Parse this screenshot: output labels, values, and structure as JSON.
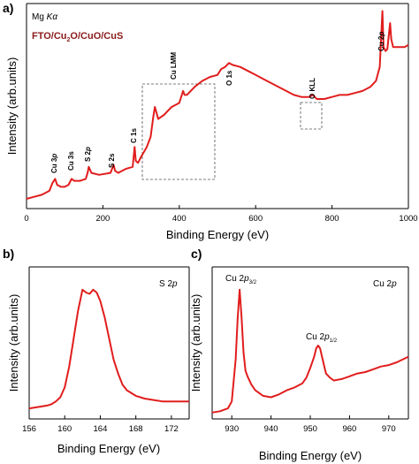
{
  "chart_data": [
    {
      "panel": "a)",
      "type": "line",
      "annotations_top": [
        "Mg Kα",
        "FTO/Cu₂O/CuO/CuS"
      ],
      "xlabel": "Binding Energy (eV)",
      "ylabel": "Intensity (arb.units)",
      "xlim": [
        0,
        1000
      ],
      "xticks": [
        0,
        200,
        400,
        600,
        800,
        1000
      ],
      "peak_labels": [
        "Cu 3p",
        "Cu 3s",
        "S 2p",
        "S 2s",
        "C 1s",
        "Cu LMM",
        "O 1s",
        "O KLL",
        "Cu 2p"
      ],
      "color": "#e11d1d",
      "series": [
        {
          "x": [
            0,
            20,
            40,
            60,
            68,
            75,
            80,
            90,
            100,
            110,
            118,
            125,
            140,
            155,
            160,
            163,
            170,
            190,
            220,
            228,
            232,
            240,
            260,
            278,
            283,
            286,
            292,
            300,
            315,
            325,
            332,
            336,
            345,
            360,
            380,
            400,
            410,
            414,
            420,
            440,
            460,
            480,
            500,
            510,
            520,
            530,
            540,
            560,
            580,
            600,
            620,
            640,
            660,
            680,
            700,
            720,
            740,
            750,
            760,
            780,
            800,
            820,
            840,
            860,
            880,
            900,
            915,
            925,
            932,
            935,
            940,
            945,
            952,
            955,
            960,
            970,
            980,
            990,
            1000
          ],
          "y": [
            0.04,
            0.05,
            0.06,
            0.08,
            0.12,
            0.14,
            0.11,
            0.1,
            0.1,
            0.11,
            0.14,
            0.13,
            0.13,
            0.14,
            0.17,
            0.2,
            0.17,
            0.16,
            0.17,
            0.21,
            0.18,
            0.17,
            0.19,
            0.2,
            0.3,
            0.23,
            0.22,
            0.25,
            0.3,
            0.35,
            0.45,
            0.5,
            0.44,
            0.46,
            0.5,
            0.52,
            0.58,
            0.56,
            0.56,
            0.6,
            0.63,
            0.65,
            0.66,
            0.69,
            0.7,
            0.72,
            0.71,
            0.7,
            0.68,
            0.66,
            0.64,
            0.62,
            0.6,
            0.58,
            0.56,
            0.55,
            0.55,
            0.56,
            0.54,
            0.54,
            0.55,
            0.56,
            0.56,
            0.57,
            0.58,
            0.6,
            0.63,
            0.7,
            0.98,
            0.8,
            0.78,
            0.79,
            0.92,
            0.84,
            0.8,
            0.8,
            0.8,
            0.8,
            0.81
          ]
        }
      ]
    },
    {
      "panel": "b)",
      "type": "line",
      "title": "S 2p",
      "xlabel": "Binding Energy (eV)",
      "ylabel": "Intensity (arb.units)",
      "xlim": [
        156,
        174
      ],
      "xticks": [
        156,
        160,
        164,
        168,
        172
      ],
      "color": "#e11d1d",
      "series": [
        {
          "x": [
            156,
            157,
            158,
            158.5,
            159,
            159.5,
            160,
            160.5,
            161,
            161.5,
            162,
            162.4,
            162.8,
            163.2,
            163.6,
            164,
            164.5,
            165,
            165.5,
            166,
            166.5,
            167,
            168,
            169,
            170,
            171,
            172,
            173,
            174
          ],
          "y": [
            0.05,
            0.06,
            0.07,
            0.08,
            0.1,
            0.13,
            0.2,
            0.35,
            0.55,
            0.75,
            0.9,
            0.88,
            0.87,
            0.9,
            0.88,
            0.82,
            0.7,
            0.55,
            0.4,
            0.3,
            0.22,
            0.18,
            0.14,
            0.12,
            0.11,
            0.1,
            0.1,
            0.1,
            0.1
          ]
        }
      ]
    },
    {
      "panel": "c)",
      "type": "line",
      "title": "Cu 2p",
      "peak_labels": [
        "Cu 2p3/2",
        "Cu 2p1/2"
      ],
      "xlabel": "Binding Energy (eV)",
      "ylabel": "Intensity (arb.units)",
      "xlim": [
        925,
        975
      ],
      "xticks": [
        930,
        940,
        950,
        960,
        970
      ],
      "color": "#e11d1d",
      "series": [
        {
          "x": [
            925,
            927,
            929,
            930,
            931,
            931.5,
            932,
            932.5,
            933,
            933.5,
            934,
            935,
            936,
            938,
            940,
            942,
            944,
            946,
            948,
            949,
            950,
            951,
            951.5,
            952,
            952.5,
            953,
            953.5,
            954,
            955,
            956,
            958,
            960,
            962,
            964,
            966,
            968,
            970,
            972,
            975
          ],
          "y": [
            0.02,
            0.03,
            0.05,
            0.1,
            0.4,
            0.7,
            0.9,
            0.7,
            0.45,
            0.32,
            0.28,
            0.22,
            0.18,
            0.14,
            0.13,
            0.15,
            0.18,
            0.2,
            0.23,
            0.27,
            0.34,
            0.42,
            0.48,
            0.5,
            0.48,
            0.42,
            0.36,
            0.3,
            0.27,
            0.25,
            0.26,
            0.28,
            0.3,
            0.31,
            0.33,
            0.35,
            0.36,
            0.38,
            0.42
          ]
        }
      ]
    }
  ]
}
